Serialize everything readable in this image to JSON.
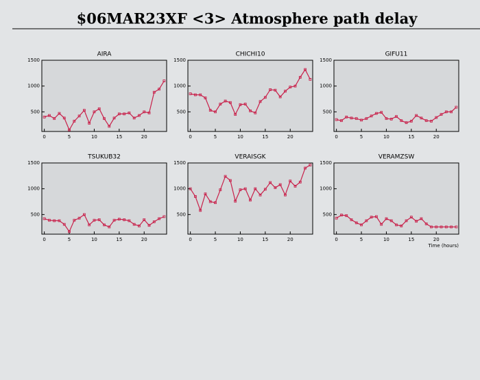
{
  "title": "$06MAR23XF <3>  Atmosphere path delay",
  "chart_data": [
    {
      "type": "line",
      "title": "AIRA",
      "color": "#c8204a",
      "x": [
        0,
        1,
        2,
        3,
        4,
        5,
        6,
        7,
        8,
        9,
        10,
        11,
        12,
        13,
        14,
        15,
        16,
        17,
        18,
        19,
        20,
        21,
        22,
        23,
        24
      ],
      "values": [
        400,
        430,
        370,
        470,
        380,
        150,
        320,
        420,
        530,
        280,
        500,
        560,
        370,
        220,
        380,
        460,
        460,
        480,
        380,
        430,
        500,
        480,
        880,
        940,
        1100
      ],
      "xlim": [
        -0.5,
        24.5
      ],
      "ylim": [
        120,
        1500
      ],
      "xticks": [
        0,
        5,
        10,
        15,
        20
      ],
      "yticks": [
        500,
        1000,
        1500
      ]
    },
    {
      "type": "line",
      "title": "CHICHI10",
      "color": "#c8204a",
      "x": [
        0,
        1,
        2,
        3,
        4,
        5,
        6,
        7,
        8,
        9,
        10,
        11,
        12,
        13,
        14,
        15,
        16,
        17,
        18,
        19,
        20,
        21,
        22,
        23,
        24
      ],
      "values": [
        850,
        830,
        830,
        770,
        530,
        500,
        650,
        710,
        680,
        450,
        640,
        650,
        520,
        480,
        700,
        780,
        930,
        920,
        790,
        900,
        980,
        1000,
        1170,
        1320,
        1130
      ],
      "xlim": [
        -0.5,
        24.5
      ],
      "ylim": [
        120,
        1500
      ],
      "xticks": [
        0,
        5,
        10,
        15,
        20
      ],
      "yticks": [
        500,
        1000,
        1500
      ]
    },
    {
      "type": "line",
      "title": "GIFU11",
      "color": "#c8204a",
      "x": [
        0,
        1,
        2,
        3,
        4,
        5,
        6,
        7,
        8,
        9,
        10,
        11,
        12,
        13,
        14,
        15,
        16,
        17,
        18,
        19,
        20,
        21,
        22,
        23,
        24
      ],
      "values": [
        350,
        330,
        400,
        380,
        370,
        340,
        370,
        420,
        470,
        490,
        370,
        360,
        410,
        330,
        290,
        320,
        430,
        380,
        330,
        320,
        390,
        450,
        500,
        500,
        590
      ],
      "xlim": [
        -0.5,
        24.5
      ],
      "ylim": [
        120,
        1500
      ],
      "xticks": [
        0,
        5,
        10,
        15,
        20
      ],
      "yticks": [
        500,
        1000,
        1500
      ]
    },
    {
      "type": "line",
      "title": "TSUKUB32",
      "color": "#c8204a",
      "x": [
        0,
        1,
        2,
        3,
        4,
        5,
        6,
        7,
        8,
        9,
        10,
        11,
        12,
        13,
        14,
        15,
        16,
        17,
        18,
        19,
        20,
        21,
        22,
        23,
        24
      ],
      "values": [
        420,
        390,
        380,
        380,
        310,
        170,
        390,
        430,
        500,
        300,
        390,
        400,
        300,
        260,
        390,
        410,
        400,
        380,
        310,
        280,
        400,
        290,
        360,
        420,
        460
      ],
      "xlim": [
        -0.5,
        24.5
      ],
      "ylim": [
        120,
        1500
      ],
      "xticks": [
        0,
        5,
        10,
        15,
        20
      ],
      "yticks": [
        500,
        1000,
        1500
      ]
    },
    {
      "type": "line",
      "title": "VERAISGK",
      "color": "#c8204a",
      "x": [
        0,
        1,
        2,
        3,
        4,
        5,
        6,
        7,
        8,
        9,
        10,
        11,
        12,
        13,
        14,
        15,
        16,
        17,
        18,
        19,
        20,
        21,
        22,
        23,
        24
      ],
      "values": [
        1000,
        850,
        580,
        900,
        750,
        730,
        980,
        1240,
        1160,
        760,
        980,
        1000,
        780,
        1000,
        880,
        990,
        1120,
        1020,
        1080,
        880,
        1150,
        1050,
        1130,
        1400,
        1460
      ],
      "xlim": [
        -0.5,
        24.5
      ],
      "ylim": [
        120,
        1500
      ],
      "xticks": [
        0,
        5,
        10,
        15,
        20
      ],
      "yticks": [
        500,
        1000,
        1500
      ]
    },
    {
      "type": "line",
      "title": "VERAMZSW",
      "color": "#c8204a",
      "xlabel": "Time (hours)",
      "x": [
        0,
        1,
        2,
        3,
        4,
        5,
        6,
        7,
        8,
        9,
        10,
        11,
        12,
        13,
        14,
        15,
        16,
        17,
        18,
        19,
        20,
        21,
        22,
        23,
        24
      ],
      "values": [
        430,
        490,
        480,
        400,
        340,
        300,
        380,
        450,
        460,
        310,
        420,
        380,
        300,
        280,
        380,
        450,
        370,
        420,
        320,
        260,
        260,
        260,
        260,
        260,
        260
      ],
      "xlim": [
        -0.5,
        24.5
      ],
      "ylim": [
        120,
        1500
      ],
      "xticks": [
        0,
        5,
        10,
        15,
        20
      ],
      "yticks": [
        500,
        1000,
        1500
      ]
    }
  ]
}
